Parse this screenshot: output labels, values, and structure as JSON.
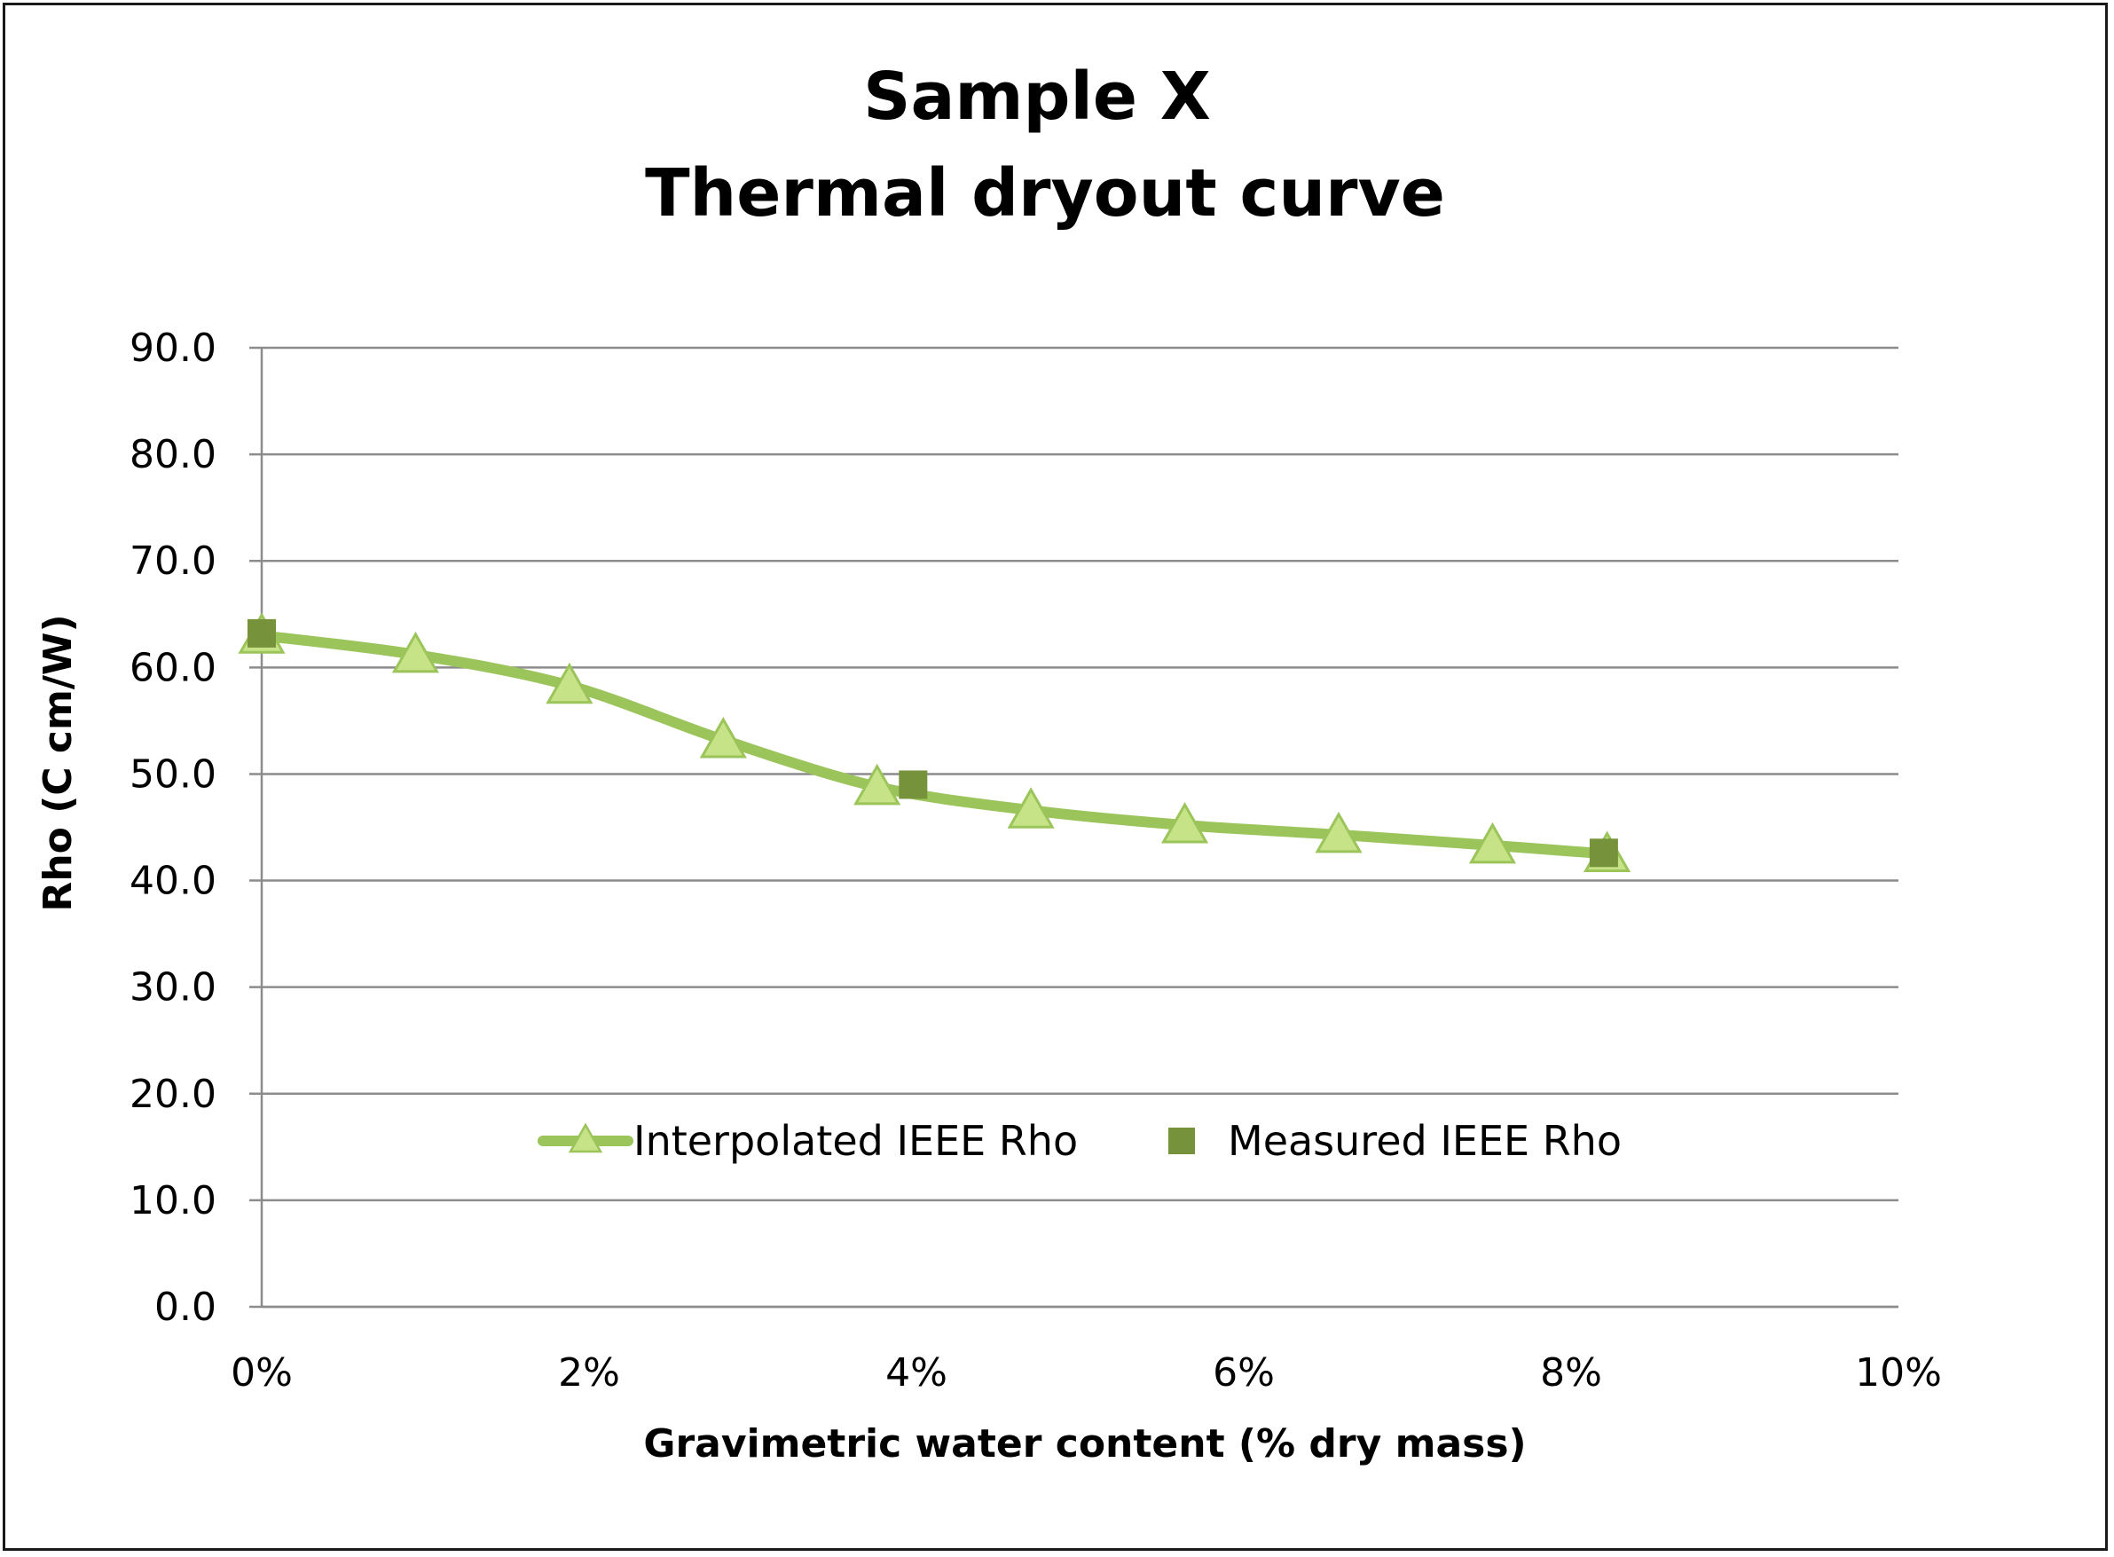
{
  "chart_data": {
    "type": "line",
    "title": "Sample X",
    "subtitle": "Thermal dryout curve",
    "xlabel": "Gravimetric water content (% dry mass)",
    "ylabel": "Rho (C cm/W)",
    "xlim": [
      0,
      10
    ],
    "ylim": [
      0,
      90
    ],
    "x_ticks": [
      "0%",
      "2%",
      "4%",
      "6%",
      "8%",
      "10%"
    ],
    "y_ticks": [
      "0.0",
      "10.0",
      "20.0",
      "30.0",
      "40.0",
      "50.0",
      "60.0",
      "70.0",
      "80.0",
      "90.0"
    ],
    "grid": "horizontal",
    "legend_position": "bottom-center",
    "series": [
      {
        "name": "Interpolated IEEE Rho",
        "marker": "triangle",
        "color": "#9bc45a",
        "marker_color": "#c6e487",
        "x": [
          0.0,
          0.94,
          1.88,
          2.82,
          3.76,
          4.7,
          5.64,
          6.58,
          7.52,
          8.22
        ],
        "y": [
          63.0,
          61.2,
          58.3,
          53.2,
          48.8,
          46.6,
          45.2,
          44.3,
          43.3,
          42.5
        ]
      },
      {
        "name": "Measured IEEE Rho",
        "marker": "square",
        "color": "#76933c",
        "x": [
          0.0,
          3.98,
          8.2
        ],
        "y": [
          63.2,
          49.0,
          42.6
        ]
      }
    ]
  }
}
